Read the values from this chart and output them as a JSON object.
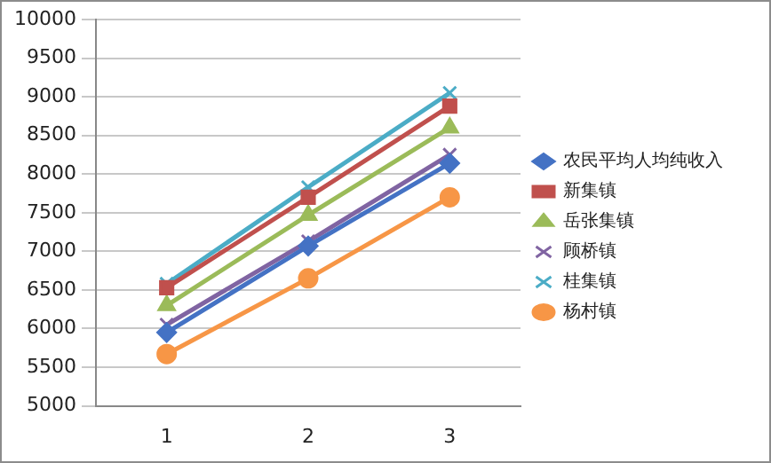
{
  "chart_data": {
    "type": "line",
    "categories": [
      "1",
      "2",
      "3"
    ],
    "series": [
      {
        "name": "农民平均人均纯收入",
        "color": "#4472c4",
        "marker": "diamond",
        "values": [
          5950,
          7070,
          8140
        ]
      },
      {
        "name": "新集镇",
        "color": "#c0504d",
        "marker": "square",
        "values": [
          6530,
          7700,
          8880
        ]
      },
      {
        "name": "岳张集镇",
        "color": "#9bbb59",
        "marker": "triangle",
        "values": [
          6300,
          7470,
          8600
        ]
      },
      {
        "name": "顾桥镇",
        "color": "#8064a2",
        "marker": "cross",
        "values": [
          6050,
          7130,
          8250
        ]
      },
      {
        "name": "桂集镇",
        "color": "#4bacc6",
        "marker": "cross",
        "values": [
          6580,
          7830,
          9050
        ]
      },
      {
        "name": "杨村镇",
        "color": "#f79646",
        "marker": "circle",
        "values": [
          5670,
          6650,
          7700
        ]
      }
    ],
    "ylim": [
      5000,
      10000
    ],
    "yticks": [
      5000,
      5500,
      6000,
      6500,
      7000,
      7500,
      8000,
      8500,
      9000,
      9500,
      10000
    ],
    "grid": "y",
    "legend": "right",
    "line_style": "solid"
  }
}
